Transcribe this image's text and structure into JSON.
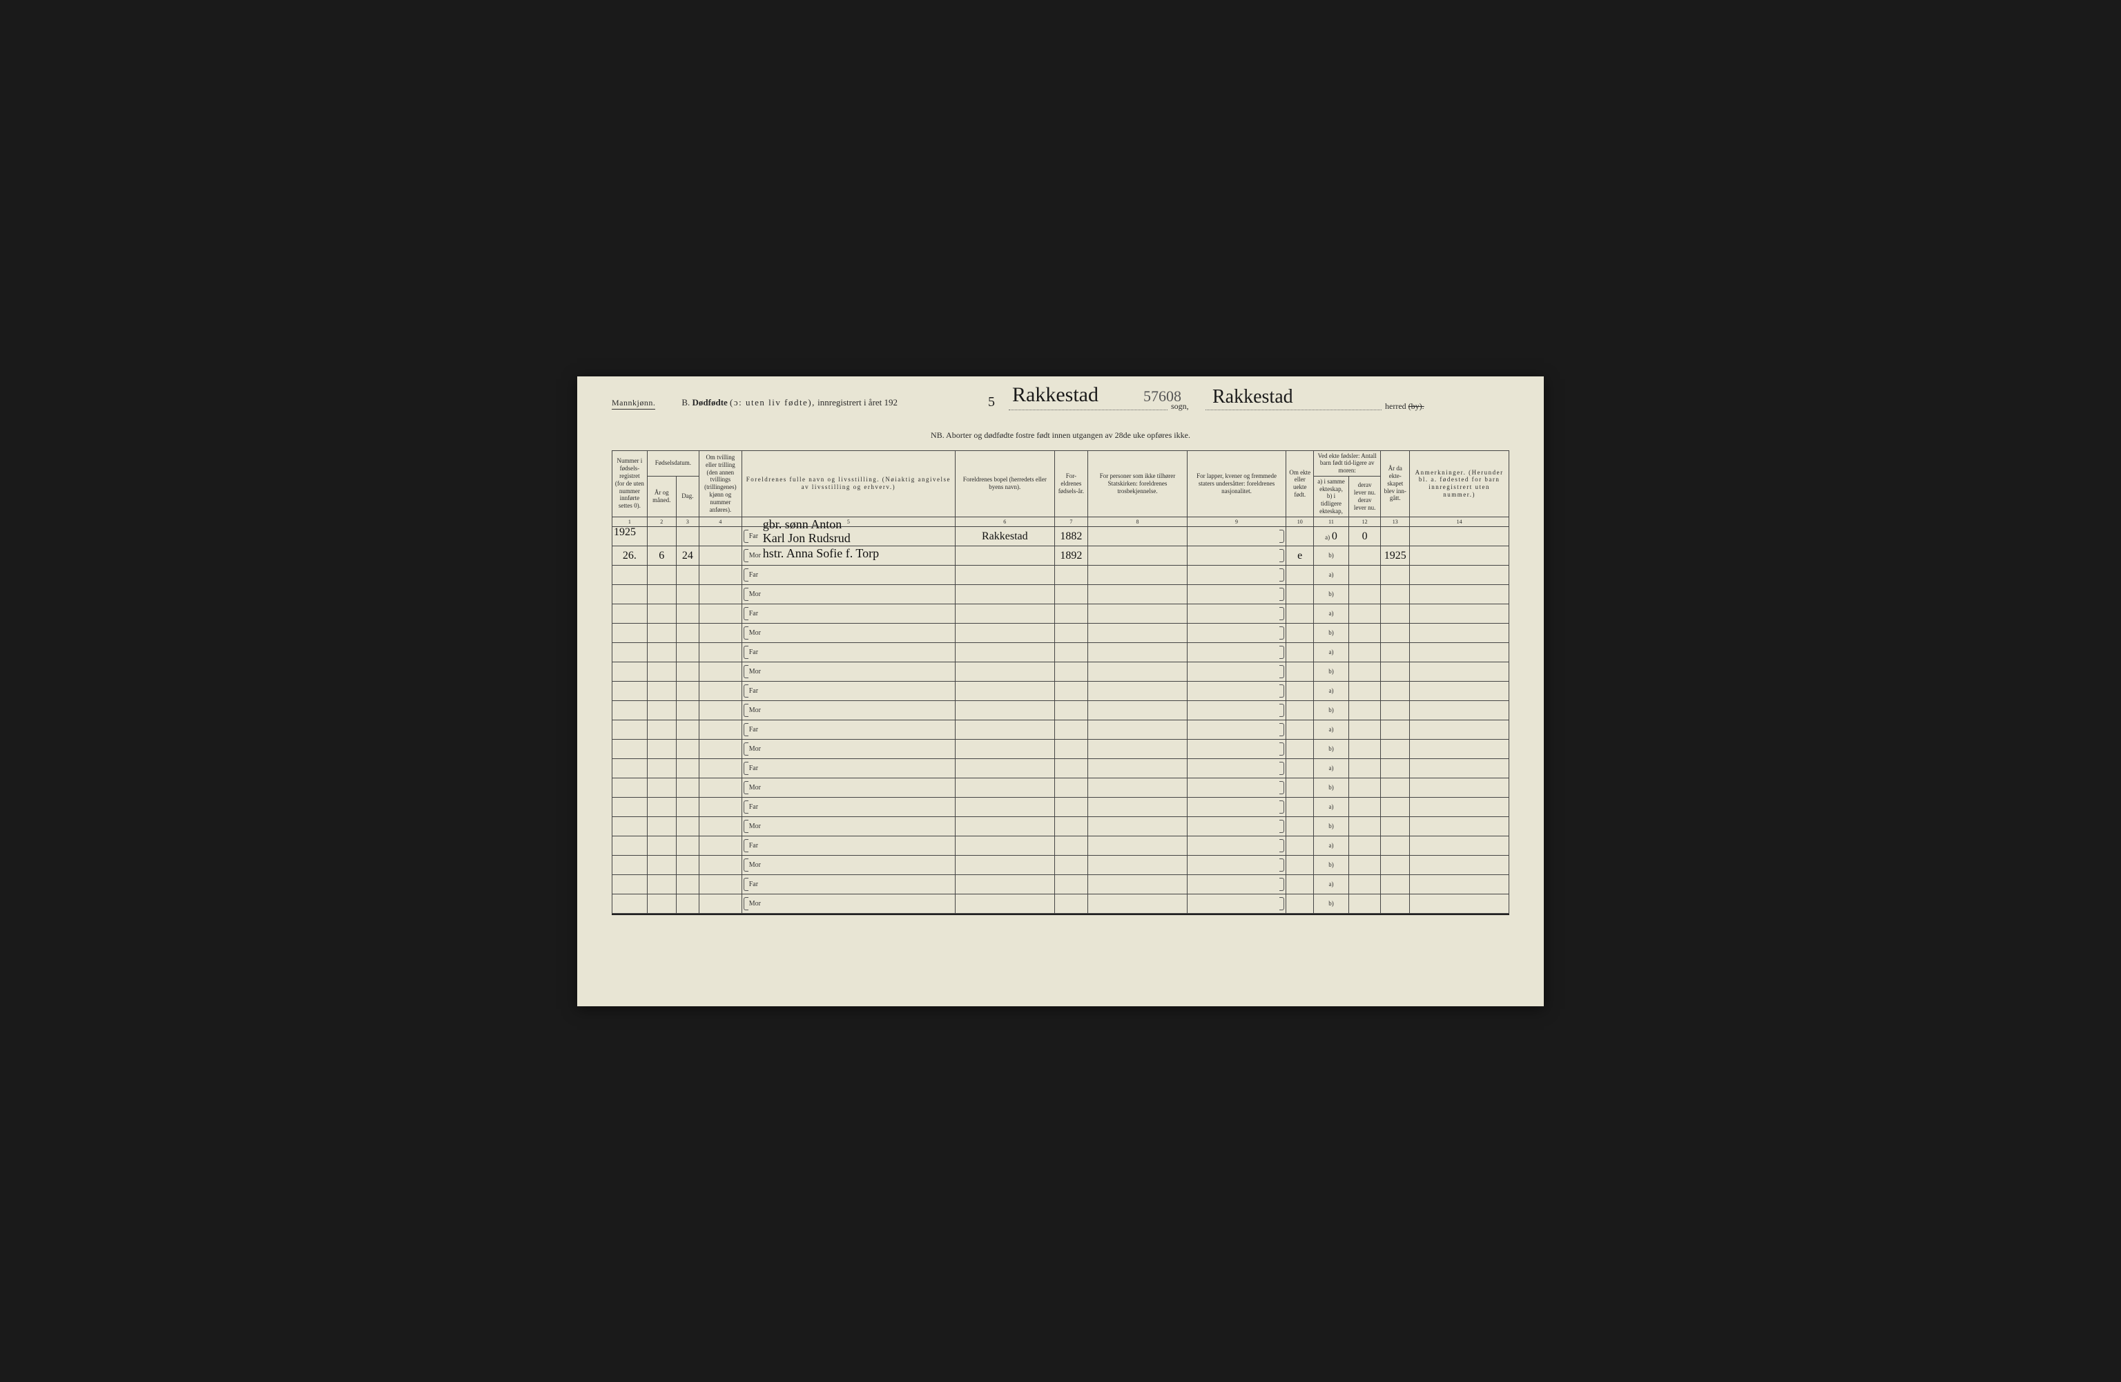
{
  "page": {
    "gender": "Mannkjønn.",
    "title_prefix": "B.",
    "title_main": "Dødfødte",
    "title_paren": "(ɔ: uten liv fødte),",
    "title_tail": "innregistrert i året 192",
    "year_handwritten": "5",
    "sogn_handwritten": "Rakkestad",
    "sogn_number": "57608",
    "sogn_label": "sogn,",
    "herred_handwritten": "Rakkestad",
    "herred_label": "herred",
    "herred_strike": "(by).",
    "nb": "NB. Aborter og dødfødte fostre født innen utgangen av 28de uke opføres ikke."
  },
  "columns": {
    "c1": "Nummer i fødsels-registret (for de uten nummer innførte settes 0).",
    "c2_group": "Fødselsdatum.",
    "c2": "År og måned.",
    "c3": "Dag.",
    "c4": "Om tvilling eller trilling (den annen tvillings (trillingenes) kjønn og nummer anføres).",
    "c5": "Foreldrenes fulle navn og livsstilling. (Nøiaktig angivelse av livsstilling og erhverv.)",
    "c6": "Foreldrenes bopel (herredets eller byens navn).",
    "c7": "For-eldrenes fødsels-år.",
    "c8": "For personer som ikke tilhører Statskirken: foreldrenes trosbekjennelse.",
    "c9": "For lapper, kvener og fremmede staters undersåtter: foreldrenes nasjonalitet.",
    "c10": "Om ekte eller uekte født.",
    "c11_group": "Ved ekte fødsler: Antall barn født tid-ligere av moren:",
    "c11a": "a) i samme ekteskap,",
    "c11b": "b) i tidligere ekteskap,",
    "c12a": "derav lever nu.",
    "c12b": "derav lever nu.",
    "c13": "År da ekte-skapet blev inn-gått.",
    "c14": "Anmerkninger. (Herunder bl. a. fødested for barn innregistrert uten nummer.)"
  },
  "colnums": [
    "1",
    "2",
    "3",
    "4",
    "5",
    "6",
    "7",
    "8",
    "9",
    "10",
    "11",
    "12",
    "13",
    "14"
  ],
  "labels": {
    "far": "Far",
    "mor": "Mor",
    "a": "a)",
    "b": "b)"
  },
  "entry": {
    "number": "26.",
    "year_month_top": "1925",
    "year_month": "6",
    "day": "24",
    "far_line_top": "gbr. sønn Anton",
    "far_line": "Karl Jon Rudsrud",
    "mor_line": "hstr. Anna Sofie f. Torp",
    "bopel": "Rakkestad",
    "far_birth": "1882",
    "mor_birth": "1892",
    "ekte": "e",
    "c11a": "0",
    "c12a": "0",
    "marriage_year": "1925"
  }
}
